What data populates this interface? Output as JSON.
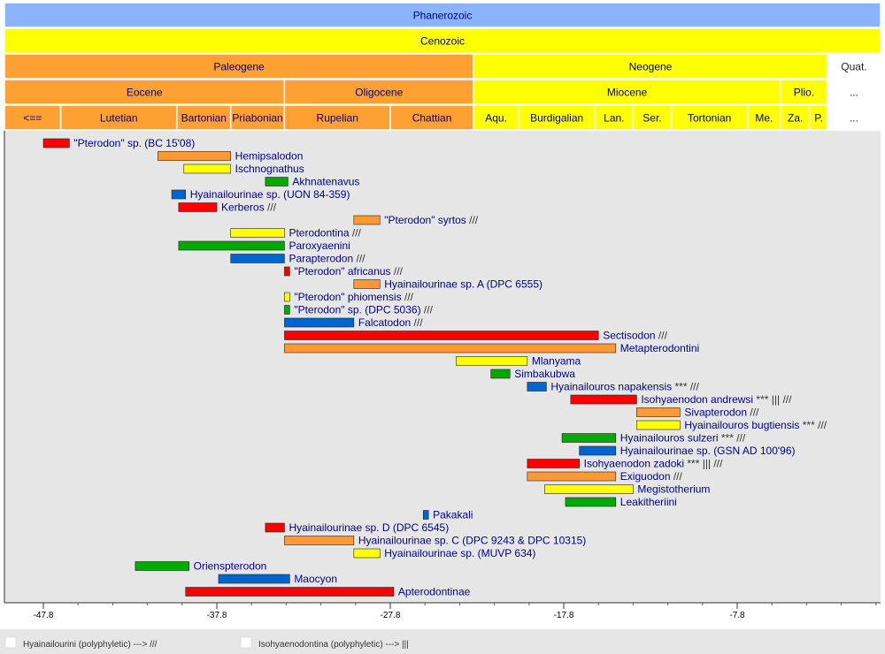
{
  "chart_data": {
    "type": "timeline",
    "x_axis": {
      "min": -48.8,
      "max": 1.6,
      "ticks": [
        -47.8,
        -37.8,
        -27.8,
        -17.8,
        -7.8
      ],
      "tick_labels": [
        "-47.8",
        "-37.8",
        "-27.8",
        "-17.8",
        "-7.8"
      ]
    },
    "colors": {
      "phanerozoic": "#8ab4ff",
      "cenozoic": "#ffff00",
      "paleogene": "#ffa033",
      "neogene": "#ffff00",
      "quaternary": "#ffffff",
      "plot_bg": "#e6e6e6",
      "label_blue": "#00008b"
    },
    "header_rows": [
      [
        {
          "label": "Phanerozoic",
          "start": -48.8,
          "end": 1.6,
          "color": "#8ab4ff"
        }
      ],
      [
        {
          "label": "Cenozoic",
          "start": -48.8,
          "end": 1.6,
          "color": "#ffff00"
        }
      ],
      [
        {
          "label": "Paleogene",
          "start": -48.8,
          "end": -23.0,
          "color": "#ffa033"
        },
        {
          "label": "Neogene",
          "start": -23.0,
          "end": -2.6,
          "color": "#ffff00"
        },
        {
          "label": "Quat.",
          "start": -2.6,
          "end": 1.6,
          "color": "#ffffff"
        }
      ],
      [
        {
          "label": "Eocene",
          "start": -48.8,
          "end": -33.9,
          "color": "#ffa033"
        },
        {
          "label": "Oligocene",
          "start": -33.9,
          "end": -23.0,
          "color": "#ffa033"
        },
        {
          "label": "Miocene",
          "start": -23.0,
          "end": -5.3,
          "color": "#ffff00"
        },
        {
          "label": "Plio.",
          "start": -5.3,
          "end": -2.6,
          "color": "#ffff00"
        },
        {
          "label": "...",
          "start": -2.6,
          "end": 1.6,
          "color": "#ffffff"
        }
      ],
      [
        {
          "label": "<==",
          "start": -48.8,
          "end": -46.8,
          "color": "#ffa033"
        },
        {
          "label": "Lutetian",
          "start": -46.8,
          "end": -40.1,
          "color": "#ffa033"
        },
        {
          "label": "Bartonian",
          "start": -40.1,
          "end": -37.0,
          "color": "#ffa033"
        },
        {
          "label": "Priabonian",
          "start": -37.0,
          "end": -33.9,
          "color": "#ffa033"
        },
        {
          "label": "Rupelian",
          "start": -33.9,
          "end": -27.8,
          "color": "#ffa033"
        },
        {
          "label": "Chattian",
          "start": -27.8,
          "end": -23.0,
          "color": "#ffa033"
        },
        {
          "label": "Aqu.",
          "start": -23.0,
          "end": -20.4,
          "color": "#ffff00"
        },
        {
          "label": "Burdigalian",
          "start": -20.4,
          "end": -16.0,
          "color": "#ffff00"
        },
        {
          "label": "Lan.",
          "start": -16.0,
          "end": -13.8,
          "color": "#ffff00"
        },
        {
          "label": "Ser.",
          "start": -13.8,
          "end": -11.6,
          "color": "#ffff00"
        },
        {
          "label": "Tortonian",
          "start": -11.6,
          "end": -7.2,
          "color": "#ffff00"
        },
        {
          "label": "Me.",
          "start": -7.2,
          "end": -5.3,
          "color": "#ffff00"
        },
        {
          "label": "Za.",
          "start": -5.3,
          "end": -3.6,
          "color": "#ffff00"
        },
        {
          "label": "P.",
          "start": -3.6,
          "end": -2.6,
          "color": "#ffff00"
        },
        {
          "label": "...",
          "start": -2.6,
          "end": 1.6,
          "color": "#ffffff"
        }
      ]
    ],
    "taxa": [
      {
        "name": "\"Pterodon\" sp. (BC 15'08)",
        "suffix": "",
        "start": -47.8,
        "end": -46.3,
        "color": "#ff0000"
      },
      {
        "name": "Hemipsalodon",
        "suffix": "",
        "start": -41.2,
        "end": -37.0,
        "color": "#ff9933"
      },
      {
        "name": "Ischnognathus",
        "suffix": "",
        "start": -39.7,
        "end": -37.0,
        "color": "#ffff00"
      },
      {
        "name": "Akhnatenavus",
        "suffix": "",
        "start": -35.0,
        "end": -33.7,
        "color": "#00aa00"
      },
      {
        "name": "Hyainailourinae sp. (UON 84-359)",
        "suffix": "",
        "start": -40.4,
        "end": -39.6,
        "color": "#0066cc"
      },
      {
        "name": "Kerberos",
        "suffix": "///",
        "start": -40.0,
        "end": -37.8,
        "color": "#ff0000"
      },
      {
        "name": "\"Pterodon\" syrtos",
        "suffix": "///",
        "start": -29.9,
        "end": -28.4,
        "color": "#ff9933"
      },
      {
        "name": "Pterodontina",
        "suffix": "///",
        "start": -37.0,
        "end": -33.9,
        "color": "#ffff00"
      },
      {
        "name": "Paroxyaenini",
        "suffix": "",
        "start": -40.0,
        "end": -33.9,
        "color": "#00aa00"
      },
      {
        "name": "Parapterodon",
        "suffix": "///",
        "start": -37.0,
        "end": -33.9,
        "color": "#0066cc"
      },
      {
        "name": "\"Pterodon\" africanus",
        "suffix": "///",
        "start": -33.9,
        "end": -33.6,
        "color": "#ff0000"
      },
      {
        "name": "Hyainailourinae sp. A (DPC 6555)",
        "suffix": "",
        "start": -29.9,
        "end": -28.4,
        "color": "#ff9933"
      },
      {
        "name": "\"Pterodon\" phiomensis",
        "suffix": "///",
        "start": -33.9,
        "end": -33.6,
        "color": "#ffff00"
      },
      {
        "name": "\"Pterodon\" sp. (DPC 5036)",
        "suffix": "///",
        "start": -33.9,
        "end": -33.6,
        "color": "#00aa00"
      },
      {
        "name": "Falcatodon",
        "suffix": "///",
        "start": -33.9,
        "end": -29.9,
        "color": "#0066cc"
      },
      {
        "name": "Sectisodon",
        "suffix": "///",
        "start": -33.9,
        "end": -15.8,
        "color": "#ff0000"
      },
      {
        "name": "Metapterodontini",
        "suffix": "",
        "start": -33.9,
        "end": -14.8,
        "color": "#ff9933"
      },
      {
        "name": "Mlanyama",
        "suffix": "",
        "start": -24.0,
        "end": -19.9,
        "color": "#ffff00"
      },
      {
        "name": "Simbakubwa",
        "suffix": "",
        "start": -22.0,
        "end": -20.9,
        "color": "#00aa00"
      },
      {
        "name": "Hyainailouros napakensis",
        "suffix": "*** ///",
        "start": -19.9,
        "end": -18.8,
        "color": "#0066cc"
      },
      {
        "name": "Isohyaenodon andrewsi",
        "suffix": "*** ||| ///",
        "start": -17.4,
        "end": -13.6,
        "color": "#ff0000"
      },
      {
        "name": "Sivapterodon",
        "suffix": "///",
        "start": -13.6,
        "end": -11.1,
        "color": "#ff9933"
      },
      {
        "name": "Hyainailouros bugtiensis",
        "suffix": "*** ///",
        "start": -13.6,
        "end": -11.1,
        "color": "#ffff00"
      },
      {
        "name": "Hyainailouros sulzeri",
        "suffix": "*** ///",
        "start": -17.9,
        "end": -14.8,
        "color": "#00aa00"
      },
      {
        "name": "Hyainailourinae sp. (GSN AD 100'96)",
        "suffix": "",
        "start": -16.9,
        "end": -14.8,
        "color": "#0066cc"
      },
      {
        "name": "Isohyaenodon zadoki",
        "suffix": "*** ||| ///",
        "start": -19.9,
        "end": -16.9,
        "color": "#ff0000"
      },
      {
        "name": "Exiguodon",
        "suffix": "///",
        "start": -19.9,
        "end": -14.8,
        "color": "#ff9933"
      },
      {
        "name": "Megistotherium",
        "suffix": "",
        "start": -18.9,
        "end": -13.8,
        "color": "#ffff00"
      },
      {
        "name": "Leakitheriini",
        "suffix": "",
        "start": -17.7,
        "end": -14.8,
        "color": "#00aa00"
      },
      {
        "name": "Pakakali",
        "suffix": "",
        "start": -25.9,
        "end": -25.6,
        "color": "#0066cc"
      },
      {
        "name": "Hyainailourinae sp. D (DPC 6545)",
        "suffix": "",
        "start": -35.0,
        "end": -33.9,
        "color": "#ff0000"
      },
      {
        "name": "Hyainailourinae sp. C (DPC 9243 & DPC 10315)",
        "suffix": "",
        "start": -33.9,
        "end": -29.9,
        "color": "#ff9933"
      },
      {
        "name": "Hyainailourinae sp. (MUVP 634)",
        "suffix": "",
        "start": -29.9,
        "end": -28.4,
        "color": "#ffff00"
      },
      {
        "name": "Orienspterodon",
        "suffix": "",
        "start": -42.5,
        "end": -39.4,
        "color": "#00aa00"
      },
      {
        "name": "Maocyon",
        "suffix": "",
        "start": -37.7,
        "end": -33.6,
        "color": "#0066cc"
      },
      {
        "name": "Apterodontinae",
        "suffix": "",
        "start": -39.6,
        "end": -27.6,
        "color": "#ff0000"
      }
    ],
    "legend": [
      {
        "label": "Hyainailourini (polyphyletic) ---> ///"
      },
      {
        "label": "Isohyaenodontina (polyphyletic) ---> |||"
      }
    ]
  }
}
